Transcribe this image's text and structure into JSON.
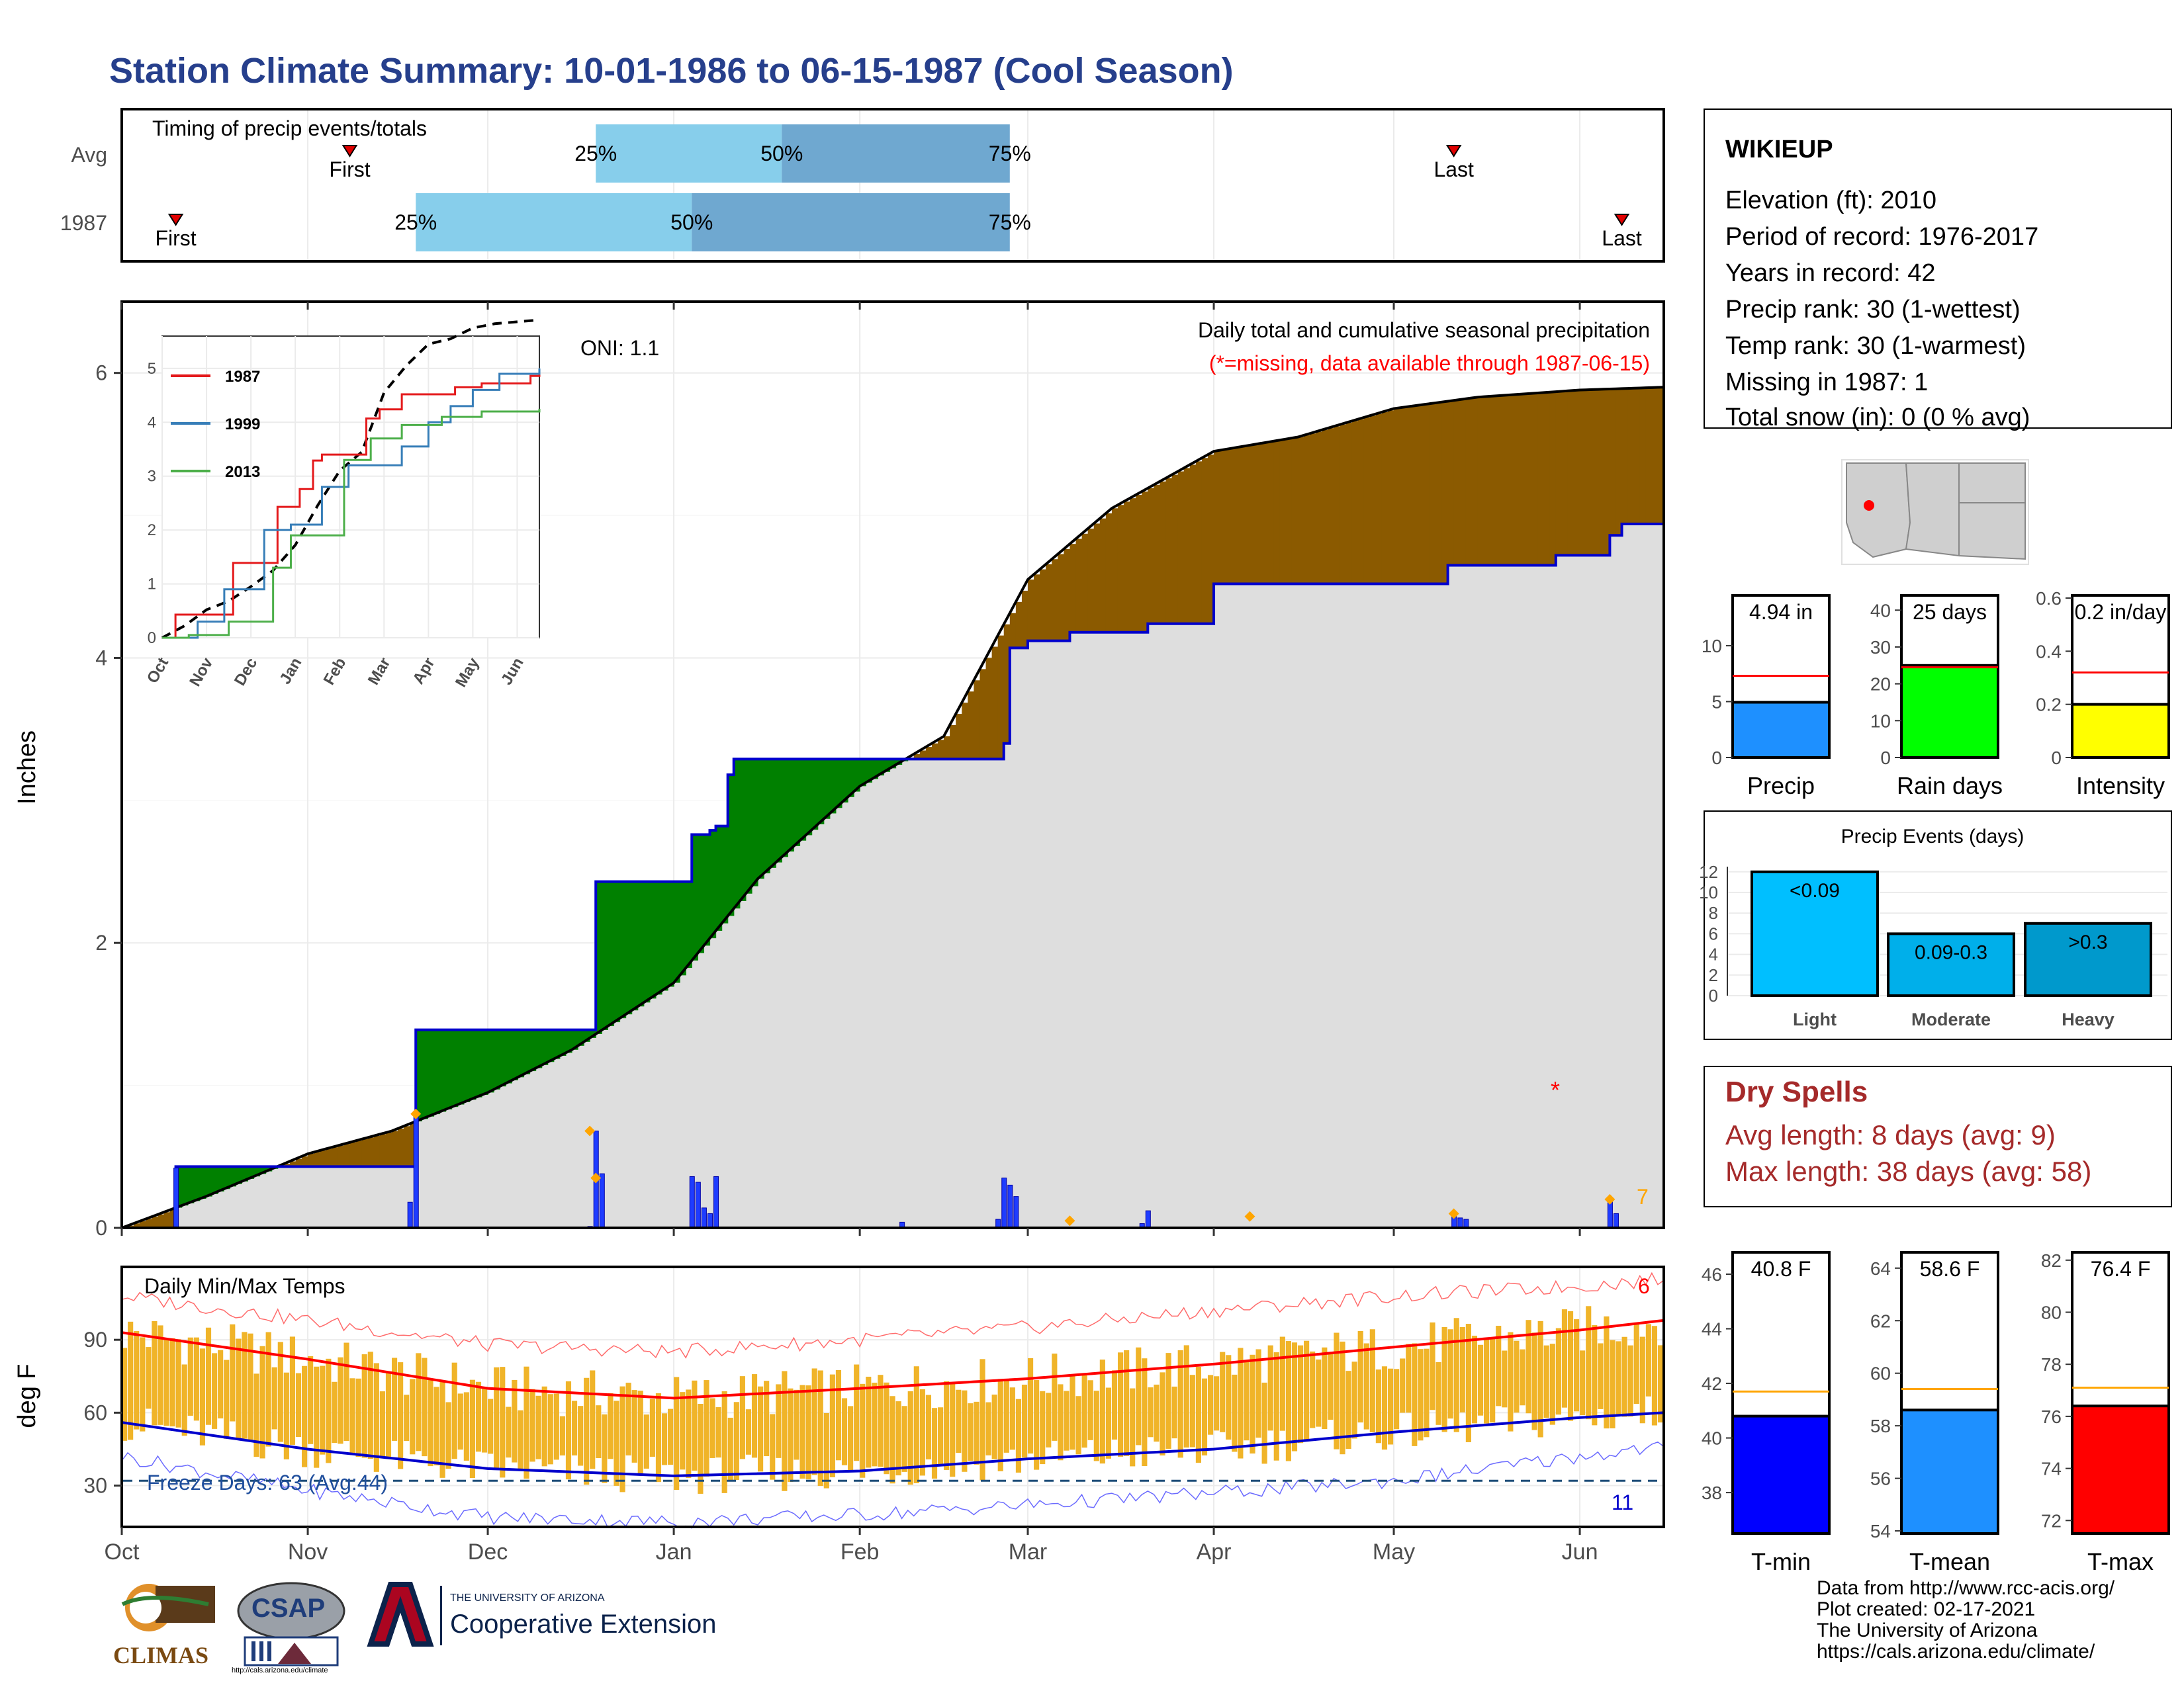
{
  "title": "Station Climate Summary: 10-01-1986 to 06-15-1987 (Cool Season)",
  "timing": {
    "panel_label": "Timing of precip events/totals",
    "rows": [
      {
        "label": "Avg",
        "first": "Nov 08",
        "q25": "Dec 19",
        "q50": "Jan 19",
        "q75": "Feb 26",
        "last": "May 11"
      },
      {
        "label": "1987",
        "first": "Oct 10",
        "q25": "Nov 19",
        "q50": "Jan 04",
        "q75": "Feb 26",
        "last": "Jun 08"
      }
    ],
    "first_label": "First",
    "last_label": "Last",
    "pct_labels": [
      "25%",
      "50%",
      "75%"
    ],
    "colors": {
      "light": "#87ceeb",
      "dark": "#6fa8d0",
      "marker": "#e00000"
    }
  },
  "station": {
    "name": "WIKIEUP",
    "lines": [
      "Elevation (ft): 2010",
      "Period of record: 1976-2017",
      "Years in record: 42",
      "Precip rank: 30 (1-wettest)",
      "Temp rank: 30 (1-warmest)",
      "Missing in 1987: 1",
      "Total snow (in): 0 (0 % avg)"
    ]
  },
  "precip_panel": {
    "ylabel": "Inches",
    "oni": "ONI: 1.1",
    "caption": "Daily total and cumulative seasonal precipitation",
    "missing_note": "(*=missing, data available through 1987-06-15)",
    "missing_marker": "*",
    "corner_count": "7"
  },
  "inset": {
    "legend": [
      {
        "name": "1987",
        "color": "#e41a1c"
      },
      {
        "name": "1999",
        "color": "#377eb8"
      },
      {
        "name": "2013",
        "color": "#4daf4a"
      }
    ],
    "months": [
      "Oct",
      "Nov",
      "Dec",
      "Jan",
      "Feb",
      "Mar",
      "Apr",
      "May",
      "Jun"
    ]
  },
  "temp_panel": {
    "title": "Daily Min/Max Temps",
    "ylabel": "deg F",
    "freeze_label": "Freeze Days: 63 (Avg:44)",
    "freeze_count": "11",
    "hot_count": "6"
  },
  "months": [
    "Oct",
    "Nov",
    "Dec",
    "Jan",
    "Feb",
    "Mar",
    "Apr",
    "May",
    "Jun"
  ],
  "bars_top": [
    {
      "label": "Precip",
      "value": 4.94,
      "text": "4.94 in",
      "avg": 7.3,
      "ymax": 14.5,
      "ticks": [
        0,
        5,
        10
      ],
      "color": "#1e90ff"
    },
    {
      "label": "Rain days",
      "value": 25,
      "text": "25 days",
      "avg": 24.5,
      "ymax": 44,
      "ticks": [
        0,
        10,
        20,
        30,
        40
      ],
      "color": "#00ff00"
    },
    {
      "label": "Intensity",
      "value": 0.2,
      "text": "0.2 in/day",
      "avg": 0.32,
      "ymax": 0.61,
      "ticks": [
        0.0,
        0.2,
        0.4,
        0.6
      ],
      "color": "#ffff00"
    }
  ],
  "events": {
    "title": "Precip Events (days)",
    "bars": [
      {
        "label": "Light",
        "value": 12,
        "text": "<0.09",
        "color": "#00bfff"
      },
      {
        "label": "Moderate",
        "value": 6,
        "text": "0.09-0.3",
        "color": "#00afea"
      },
      {
        "label": "Heavy",
        "value": 7,
        "text": ">0.3",
        "color": "#0099cc"
      }
    ],
    "ticks": [
      0,
      2,
      4,
      6,
      8,
      10,
      12
    ]
  },
  "dry_spells": {
    "title": "Dry Spells",
    "lines": [
      "Avg length: 8 days (avg: 9)",
      "Max length: 38 days (avg: 58)"
    ]
  },
  "bars_bottom": [
    {
      "label": "T-min",
      "value": 40.8,
      "text": "40.8 F",
      "avg": 41.7,
      "ymin": 36.5,
      "ymax": 46.8,
      "ticks": [
        38,
        40,
        42,
        44,
        46
      ],
      "color": "#0000ff"
    },
    {
      "label": "T-mean",
      "value": 58.6,
      "text": "58.6 F",
      "avg": 59.4,
      "ymin": 53.9,
      "ymax": 64.6,
      "ticks": [
        54,
        56,
        58,
        60,
        62,
        64
      ],
      "color": "#1e90ff"
    },
    {
      "label": "T-max",
      "value": 76.4,
      "text": "76.4 F",
      "avg": 77.1,
      "ymin": 71.5,
      "ymax": 82.3,
      "ticks": [
        72,
        74,
        76,
        78,
        80,
        82
      ],
      "color": "#ff0000"
    }
  ],
  "footer": [
    "Data from http://www.rcc-acis.org/",
    "Plot created: 02-17-2021",
    "The University of Arizona",
    "https://cals.arizona.edu/climate/"
  ],
  "logos": {
    "climas": "CLIMAS",
    "csap": "CSAP",
    "csap_url": "http://cals.arizona.edu/climate",
    "ua_line1": "THE UNIVERSITY OF ARIZONA",
    "ua_line2": "Cooperative Extension"
  },
  "chart_data": [
    {
      "type": "area",
      "title": "Daily total and cumulative seasonal precipitation",
      "xlabel": "",
      "ylabel": "Inches",
      "ylim": [
        0,
        6.5
      ],
      "x_range": [
        "1986-10-01",
        "1987-06-15"
      ],
      "yticks": [
        0,
        2,
        4,
        6
      ],
      "series": [
        {
          "name": "Avg",
          "color": "#000000",
          "x": [
            "1986-10-01",
            "1986-10-15",
            "1986-11-01",
            "1986-11-15",
            "1986-12-01",
            "1986-12-15",
            "1987-01-01",
            "1987-01-15",
            "1987-02-01",
            "1987-02-15",
            "1987-03-01",
            "1987-03-15",
            "1987-04-01",
            "1987-04-15",
            "1987-05-01",
            "1987-05-15",
            "1987-06-01",
            "1987-06-15"
          ],
          "y": [
            0.0,
            0.22,
            0.52,
            0.68,
            0.95,
            1.25,
            1.72,
            2.45,
            3.1,
            3.45,
            4.55,
            5.05,
            5.45,
            5.55,
            5.75,
            5.83,
            5.88,
            5.9
          ]
        },
        {
          "name": "1987",
          "color": "#0000cc",
          "x": [
            "1986-10-01",
            "1986-10-10",
            "1986-11-19",
            "1986-12-19",
            "1987-01-04",
            "1987-01-07",
            "1987-01-08",
            "1987-01-10",
            "1987-01-11",
            "1987-02-25",
            "1987-02-26",
            "1987-03-01",
            "1987-03-08",
            "1987-03-21",
            "1987-04-01",
            "1987-05-10",
            "1987-05-28",
            "1987-06-06",
            "1987-06-08",
            "1987-06-15"
          ],
          "y": [
            0.0,
            0.43,
            1.39,
            2.43,
            2.76,
            2.79,
            2.82,
            3.18,
            3.29,
            3.4,
            4.07,
            4.12,
            4.18,
            4.24,
            4.52,
            4.65,
            4.72,
            4.86,
            4.94,
            4.94
          ]
        }
      ],
      "daily_totals": {
        "x": [
          "1986-10-10",
          "1986-11-18",
          "1986-11-19",
          "1986-12-18",
          "1986-12-19",
          "1986-12-20",
          "1987-01-04",
          "1987-01-05",
          "1987-01-06",
          "1987-01-07",
          "1987-01-08",
          "1987-02-08",
          "1987-02-24",
          "1987-02-25",
          "1987-02-26",
          "1987-02-27",
          "1987-03-20",
          "1987-03-21",
          "1987-05-11",
          "1987-05-12",
          "1987-05-13",
          "1987-06-06",
          "1987-06-07"
        ],
        "y": [
          0.42,
          0.18,
          0.82,
          0.01,
          0.68,
          0.38,
          0.36,
          0.32,
          0.14,
          0.1,
          0.36,
          0.04,
          0.06,
          0.35,
          0.3,
          0.22,
          0.03,
          0.12,
          0.08,
          0.07,
          0.06,
          0.2,
          0.1
        ]
      },
      "daily_avg_marks": {
        "x": [
          "1986-11-19",
          "1986-12-18",
          "1986-12-19",
          "1987-03-08",
          "1987-04-07",
          "1987-05-11",
          "1987-06-06"
        ],
        "y": [
          0.8,
          0.68,
          0.35,
          0.05,
          0.08,
          0.1,
          0.2
        ]
      }
    },
    {
      "type": "line",
      "title": "",
      "ylim": [
        0,
        5.6
      ],
      "yticks": [
        0,
        1,
        2,
        3,
        4,
        5
      ],
      "series": [
        {
          "name": "Avg",
          "color": "#000000",
          "x": [
            0,
            0.5,
            1,
            1.5,
            2,
            2.5,
            3,
            3.5,
            4,
            4.5,
            5,
            5.5,
            6,
            6.5,
            7,
            7.5,
            8.5
          ],
          "y": [
            0,
            0.22,
            0.52,
            0.68,
            0.95,
            1.25,
            1.72,
            2.45,
            3.1,
            3.45,
            4.55,
            5.05,
            5.45,
            5.55,
            5.75,
            5.83,
            5.9
          ]
        },
        {
          "name": "1987",
          "color": "#e41a1c",
          "x": [
            0,
            0.3,
            1.6,
            2.6,
            3.1,
            3.4,
            3.6,
            4.6,
            4.9,
            5.4,
            6.6,
            7.2,
            8.3,
            8.5
          ],
          "y": [
            0,
            0.43,
            1.39,
            2.43,
            2.76,
            3.29,
            3.4,
            4.07,
            4.24,
            4.52,
            4.65,
            4.72,
            4.86,
            4.94
          ]
        },
        {
          "name": "1999",
          "color": "#377eb8",
          "x": [
            0,
            0.8,
            1.4,
            2.3,
            2.9,
            3.6,
            4.2,
            4.6,
            5.4,
            6.0,
            6.5,
            7.0,
            7.6,
            8.5
          ],
          "y": [
            0,
            0.3,
            0.9,
            2.0,
            2.1,
            2.8,
            3.2,
            3.2,
            3.55,
            4.0,
            4.3,
            4.6,
            4.9,
            5.0
          ]
        },
        {
          "name": "2013",
          "color": "#4daf4a",
          "x": [
            0,
            0.6,
            1.5,
            2.5,
            2.9,
            3.7,
            4.1,
            4.7,
            5.4,
            6.3,
            7.2,
            8.5
          ],
          "y": [
            0,
            0.05,
            0.3,
            1.3,
            1.9,
            1.9,
            3.3,
            3.7,
            3.95,
            4.1,
            4.2,
            4.25
          ]
        }
      ]
    },
    {
      "type": "bar",
      "title": "Daily Min/Max Temps",
      "ylabel": "deg F",
      "ylim": [
        13,
        120
      ],
      "yticks": [
        30,
        60,
        90
      ],
      "x_range": [
        "1986-10-01",
        "1987-06-15"
      ],
      "avg_max": {
        "x": [
          "1986-10-01",
          "1986-11-01",
          "1986-12-01",
          "1987-01-01",
          "1987-02-01",
          "1987-03-01",
          "1987-04-01",
          "1987-05-01",
          "1987-06-01",
          "1987-06-15"
        ],
        "y": [
          93,
          82,
          70,
          66,
          70,
          74,
          80,
          87,
          94,
          98
        ]
      },
      "avg_min": {
        "x": [
          "1986-10-01",
          "1986-11-01",
          "1986-12-01",
          "1987-01-01",
          "1987-02-01",
          "1987-03-01",
          "1987-04-01",
          "1987-05-01",
          "1987-06-01",
          "1987-06-15"
        ],
        "y": [
          56,
          45,
          37,
          34,
          36,
          41,
          45,
          52,
          58,
          60
        ]
      },
      "record_max_env": {
        "x": [
          "1986-10-01",
          "1986-11-01",
          "1986-12-01",
          "1987-01-01",
          "1987-02-01",
          "1987-03-01",
          "1987-04-01",
          "1987-05-01",
          "1987-06-01",
          "1987-06-15"
        ],
        "y": [
          108,
          98,
          88,
          85,
          90,
          95,
          102,
          108,
          112,
          115
        ]
      },
      "record_min_env": {
        "x": [
          "1986-10-01",
          "1986-11-01",
          "1986-12-01",
          "1987-01-01",
          "1987-02-01",
          "1987-03-01",
          "1987-04-01",
          "1987-05-01",
          "1987-06-01",
          "1987-06-15"
        ],
        "y": [
          42,
          28,
          17,
          15,
          18,
          22,
          27,
          32,
          42,
          46
        ]
      },
      "freeze_line": 32
    },
    {
      "type": "bar",
      "categories": [
        "Precip",
        "Rain days",
        "Intensity"
      ],
      "values": [
        4.94,
        25,
        0.2
      ],
      "averages": [
        7.3,
        24.5,
        0.32
      ]
    },
    {
      "type": "bar",
      "title": "Precip Events (days)",
      "categories": [
        "Light",
        "Moderate",
        "Heavy"
      ],
      "values": [
        12,
        6,
        7
      ],
      "ylim": [
        0,
        12.5
      ]
    },
    {
      "type": "bar",
      "categories": [
        "T-min",
        "T-mean",
        "T-max"
      ],
      "values": [
        40.8,
        58.6,
        76.4
      ],
      "averages": [
        41.7,
        59.4,
        77.1
      ]
    }
  ]
}
